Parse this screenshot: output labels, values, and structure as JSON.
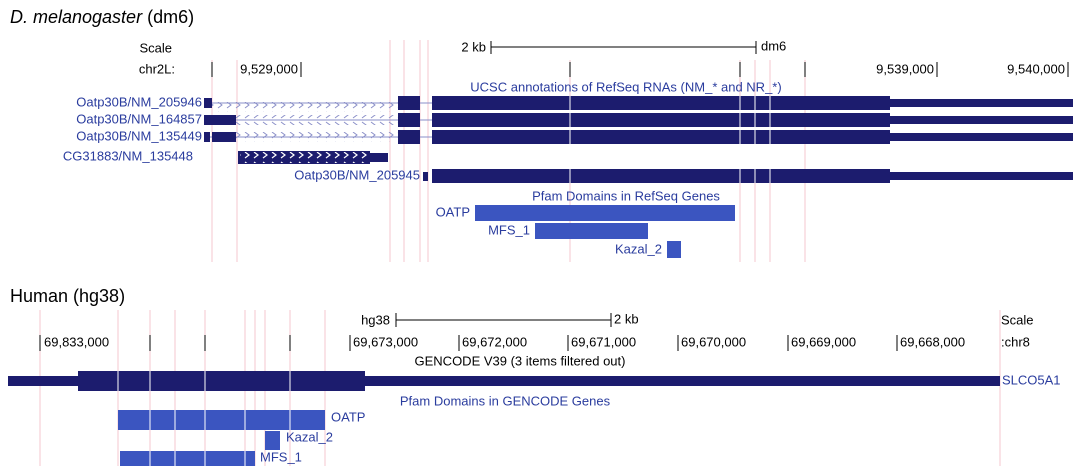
{
  "panels": [
    {
      "title": {
        "species": "D. melanogaster",
        "assembly": "(dm6)"
      },
      "scale": {
        "label": "Scale",
        "size": "2 kb",
        "assembly": "dm6"
      },
      "chromosome": "chr2L:",
      "ticks": [
        "9,529,000",
        "9,539,000",
        "9,540,000"
      ],
      "gene_track": "UCSC annotations of RefSeq RNAs (NM_* and NR_*)",
      "transcripts": [
        "Oatp30B/NM_205946",
        "Oatp30B/NM_164857",
        "Oatp30B/NM_135449",
        "CG31883/NM_135448",
        "Oatp30B/NM_205945"
      ],
      "pfam_track": "Pfam Domains in RefSeq Genes",
      "domains": [
        "OATP",
        "MFS_1",
        "Kazal_2"
      ]
    },
    {
      "title": {
        "species": "Human",
        "assembly": "(hg38)"
      },
      "scale": {
        "label": "Scale",
        "size": "2 kb",
        "assembly": "hg38"
      },
      "chromosome": ":chr8",
      "ticks": [
        "69,833,000",
        "69,673,000",
        "69,672,000",
        "69,671,000",
        "69,670,000",
        "69,669,000",
        "69,668,000"
      ],
      "gene_track": "GENCODE V39 (3 items filtered out)",
      "transcripts": [
        "SLCO5A1"
      ],
      "pfam_track": "Pfam Domains in GENCODE Genes",
      "domains": [
        "OATP",
        "Kazal_2",
        "MFS_1"
      ]
    }
  ]
}
